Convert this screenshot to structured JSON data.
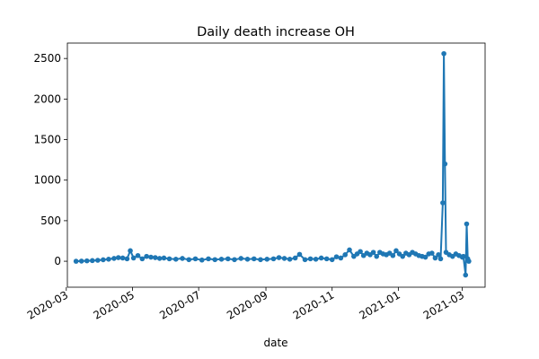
{
  "chart_data": {
    "type": "line",
    "title": "Daily death increase OH",
    "xlabel": "date",
    "ylabel": "",
    "x_axis_type": "date",
    "xlim": [
      "2020-03-02",
      "2021-03-22"
    ],
    "ylim": [
      -320,
      2690
    ],
    "x_ticks": [
      "2020-03-01",
      "2020-05-01",
      "2020-07-01",
      "2020-09-01",
      "2020-11-01",
      "2021-01-01",
      "2021-03-01"
    ],
    "x_tick_labels": [
      "2020-03",
      "2020-05",
      "2020-07",
      "2020-09",
      "2020-11",
      "2021-01",
      "2021-03"
    ],
    "y_ticks": [
      0,
      500,
      1000,
      1500,
      2000,
      2500
    ],
    "y_tick_labels": [
      "0",
      "500",
      "1000",
      "1500",
      "2000",
      "2500"
    ],
    "grid": false,
    "legend": false,
    "series": [
      {
        "color": "#1f77b4",
        "marker": "circle",
        "x": [
          "2020-03-10",
          "2020-03-15",
          "2020-03-20",
          "2020-03-25",
          "2020-03-30",
          "2020-04-04",
          "2020-04-09",
          "2020-04-14",
          "2020-04-18",
          "2020-04-22",
          "2020-04-26",
          "2020-04-29",
          "2020-05-02",
          "2020-05-06",
          "2020-05-10",
          "2020-05-14",
          "2020-05-18",
          "2020-05-22",
          "2020-05-26",
          "2020-05-30",
          "2020-06-04",
          "2020-06-10",
          "2020-06-16",
          "2020-06-22",
          "2020-06-28",
          "2020-07-04",
          "2020-07-10",
          "2020-07-16",
          "2020-07-22",
          "2020-07-28",
          "2020-08-03",
          "2020-08-09",
          "2020-08-15",
          "2020-08-21",
          "2020-08-27",
          "2020-09-02",
          "2020-09-08",
          "2020-09-13",
          "2020-09-18",
          "2020-09-23",
          "2020-09-28",
          "2020-10-02",
          "2020-10-07",
          "2020-10-12",
          "2020-10-17",
          "2020-10-22",
          "2020-10-27",
          "2020-11-01",
          "2020-11-05",
          "2020-11-09",
          "2020-11-13",
          "2020-11-17",
          "2020-11-21",
          "2020-11-24",
          "2020-11-27",
          "2020-11-30",
          "2020-12-03",
          "2020-12-06",
          "2020-12-09",
          "2020-12-12",
          "2020-12-15",
          "2020-12-18",
          "2020-12-21",
          "2020-12-24",
          "2020-12-27",
          "2020-12-30",
          "2021-01-02",
          "2021-01-05",
          "2021-01-08",
          "2021-01-11",
          "2021-01-14",
          "2021-01-17",
          "2021-01-20",
          "2021-01-23",
          "2021-01-26",
          "2021-01-29",
          "2021-02-01",
          "2021-02-04",
          "2021-02-07",
          "2021-02-09",
          "2021-02-11",
          "2021-02-12",
          "2021-02-13",
          "2021-02-14",
          "2021-02-17",
          "2021-02-20",
          "2021-02-23",
          "2021-02-26",
          "2021-03-01",
          "2021-03-02",
          "2021-03-04",
          "2021-03-05",
          "2021-03-06",
          "2021-03-07"
        ],
        "y": [
          0,
          2,
          5,
          8,
          12,
          18,
          25,
          35,
          45,
          40,
          30,
          130,
          40,
          70,
          30,
          60,
          50,
          45,
          35,
          40,
          30,
          25,
          35,
          20,
          30,
          15,
          30,
          20,
          25,
          30,
          20,
          35,
          25,
          30,
          20,
          25,
          30,
          45,
          35,
          25,
          40,
          85,
          20,
          30,
          25,
          40,
          30,
          20,
          55,
          40,
          80,
          140,
          60,
          90,
          120,
          70,
          100,
          80,
          110,
          60,
          110,
          90,
          80,
          100,
          70,
          130,
          90,
          60,
          100,
          80,
          110,
          90,
          70,
          60,
          50,
          90,
          100,
          40,
          80,
          30,
          720,
          2560,
          1200,
          110,
          80,
          60,
          90,
          70,
          50,
          60,
          -170,
          460,
          30,
          0
        ]
      }
    ]
  }
}
